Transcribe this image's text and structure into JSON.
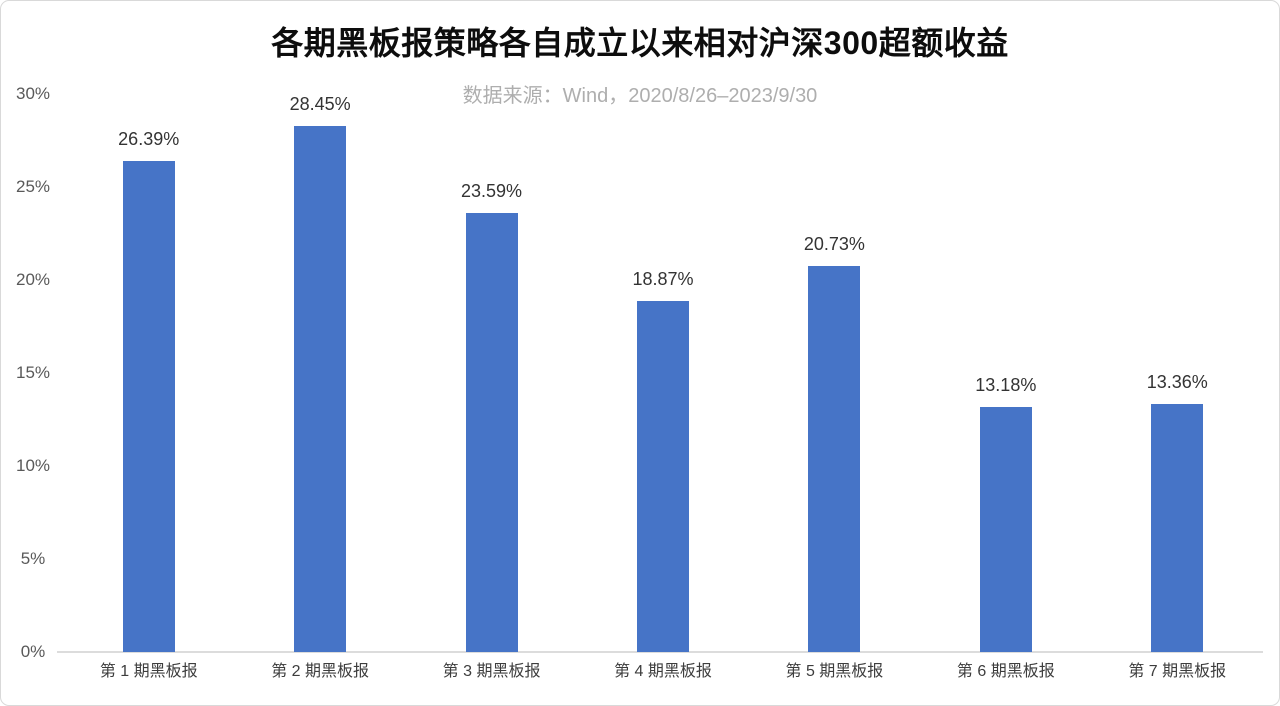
{
  "colors": {
    "bar": "#4674c7",
    "axis_line": "#dcdcdc",
    "card_border": "#d9d9d9",
    "background": "#ffffff",
    "title": "#0d0d0d",
    "subtitle": "#aeaeae",
    "tick": "#595959",
    "value_label": "#333333",
    "category_label": "#3d3d3d"
  },
  "chart_data": {
    "type": "bar",
    "title": "各期黑板报策略各自成立以来相对沪深300超额收益",
    "subtitle": "数据来源：Wind，2020/8/26–2023/9/30",
    "source": "Wind",
    "period": "2020/8/26–2023/9/30",
    "categories": [
      "第 1 期黑板报",
      "第 2 期黑板报",
      "第 3 期黑板报",
      "第 4 期黑板报",
      "第 5 期黑板报",
      "第 6 期黑板报",
      "第 7 期黑板报"
    ],
    "values": [
      26.39,
      28.45,
      23.59,
      18.87,
      20.73,
      13.18,
      13.36
    ],
    "value_labels": [
      "26.39%",
      "28.45%",
      "23.59%",
      "18.87%",
      "20.73%",
      "13.18%",
      "13.36%"
    ],
    "xlabel": "",
    "ylabel": "",
    "ylim": [
      0,
      30
    ],
    "yticks": [
      {
        "value": 0,
        "label": "0%"
      },
      {
        "value": 5,
        "label": "5%"
      },
      {
        "value": 10,
        "label": "10%"
      },
      {
        "value": 15,
        "label": "15%"
      },
      {
        "value": 20,
        "label": "20%"
      },
      {
        "value": 25,
        "label": "25%"
      },
      {
        "value": 30,
        "label": "30%"
      }
    ],
    "grid": false,
    "legend_position": "none"
  }
}
